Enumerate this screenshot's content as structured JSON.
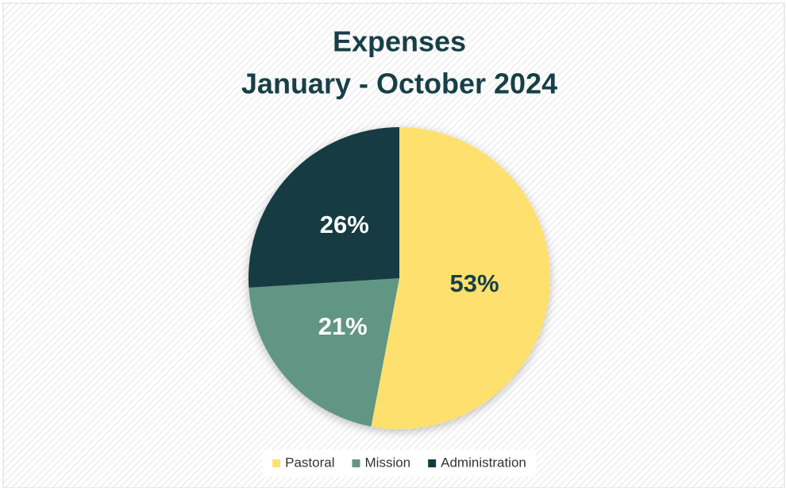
{
  "chart_data": {
    "type": "pie",
    "title": "Expenses",
    "subtitle": "January - October 2024",
    "categories": [
      "Pastoral",
      "Mission",
      "Administration"
    ],
    "values": [
      53,
      21,
      26
    ],
    "value_labels": [
      "53%",
      "21%",
      "26%"
    ],
    "colors": [
      "#fee06e",
      "#609683",
      "#123b42"
    ],
    "legend": "bottom"
  }
}
